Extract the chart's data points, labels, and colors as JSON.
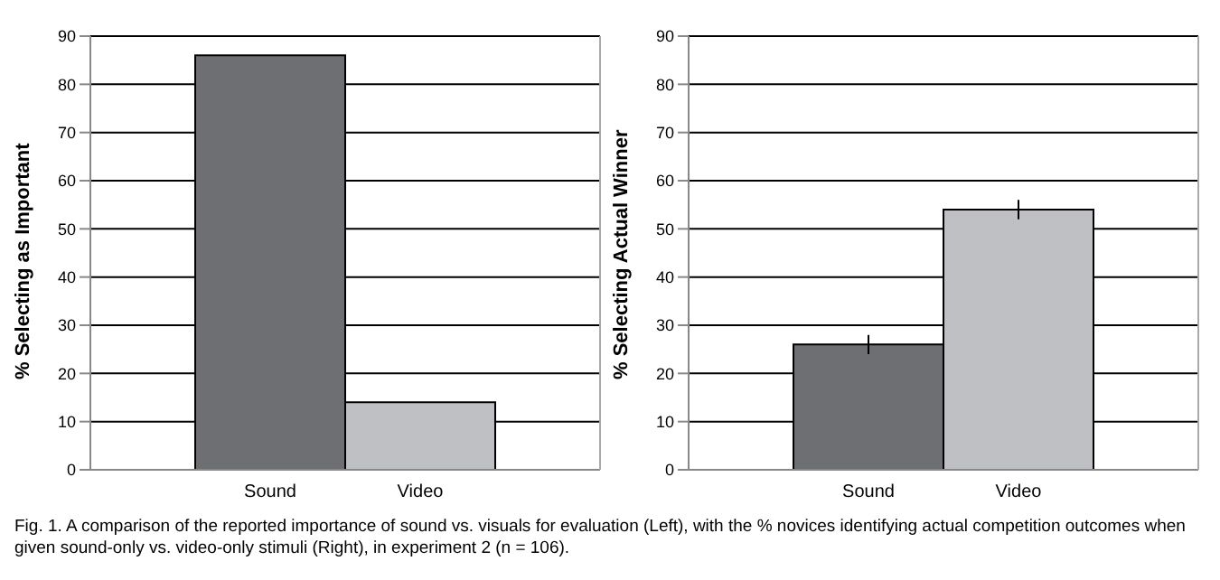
{
  "chart_data": [
    {
      "type": "bar",
      "ylabel": "% Selecting as Important",
      "categories": [
        "Sound",
        "Video"
      ],
      "values": [
        86,
        14
      ],
      "colors": [
        "#6e6f73",
        "#bfc0c4"
      ],
      "ylim": [
        0,
        90
      ],
      "yticks": [
        0,
        10,
        20,
        30,
        40,
        50,
        60,
        70,
        80,
        90
      ],
      "grid": "y",
      "legend": false,
      "annotations": [
        "Fig. 1.   A comparison of the reported importance of sound vs. visuals for evaluation (Left), with the % novices identifying actual competition outcomes when given sound-only vs. video-only stimuli (Right), in experiment 2 (n = 106)."
      ]
    },
    {
      "type": "bar",
      "ylabel": "% Selecting Actual Winner",
      "categories": [
        "Sound",
        "Video"
      ],
      "values": [
        26,
        54
      ],
      "errors": [
        2,
        2
      ],
      "colors": [
        "#6e6f73",
        "#bfc0c4"
      ],
      "ylim": [
        0,
        90
      ],
      "yticks": [
        0,
        10,
        20,
        30,
        40,
        50,
        60,
        70,
        80,
        90
      ],
      "grid": "y",
      "legend": false
    }
  ]
}
